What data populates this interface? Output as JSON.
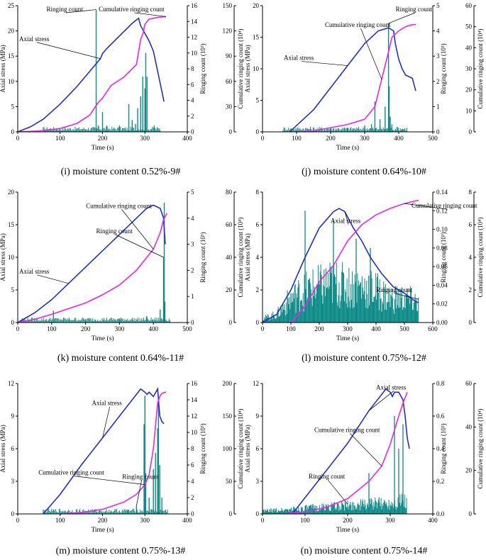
{
  "colors": {
    "axial": "#1f2ed8",
    "cumulative": "#ee22ee",
    "ringing": "#0b8a86",
    "axis": "#000000"
  },
  "chart_data": [
    {
      "id": "i",
      "type": "line",
      "caption": "(i) moisture content 0.52%-9#",
      "xlabel": "Time (s)",
      "ylabel_left": "Axial stress (MPa)",
      "ylabel_r1": "Ringing count (10³)",
      "ylabel_r2": "Cumulative ringing count (10⁴)",
      "xlim": [
        0,
        400
      ],
      "xticks": [
        0,
        100,
        200,
        300,
        400
      ],
      "ylim_left": [
        0,
        25
      ],
      "yticks_left": [
        0,
        5,
        10,
        15,
        20,
        25
      ],
      "ylim_r1": [
        0,
        16
      ],
      "yticks_r1": [
        0,
        2,
        4,
        6,
        8,
        10,
        12,
        14,
        16
      ],
      "ylim_r2": [
        0,
        150
      ],
      "yticks_r2": [
        0,
        30,
        60,
        90,
        120,
        150
      ],
      "annotations": [
        {
          "text": "Ringing count",
          "series": "ringing"
        },
        {
          "text": "Cumulative ringing count",
          "series": "cumulative"
        },
        {
          "text": "Axial stress",
          "series": "axial"
        }
      ],
      "series": [
        {
          "name": "Axial stress",
          "axis": "left",
          "x": [
            0,
            30,
            60,
            100,
            140,
            180,
            195,
            200,
            210,
            240,
            270,
            285,
            290,
            300,
            310,
            320,
            330,
            340,
            345
          ],
          "y": [
            0,
            1,
            2.5,
            5.5,
            9,
            13,
            14.5,
            15.5,
            16.5,
            19,
            21.5,
            22.5,
            21,
            19.5,
            18,
            16,
            12,
            8,
            6
          ]
        },
        {
          "name": "Cumulative ringing count",
          "axis": "r2",
          "x": [
            0,
            50,
            100,
            140,
            170,
            190,
            200,
            220,
            250,
            280,
            290,
            295,
            300,
            310,
            330,
            350
          ],
          "y": [
            0,
            1,
            4,
            10,
            20,
            35,
            40,
            55,
            65,
            80,
            110,
            116,
            128,
            134,
            136,
            137
          ]
        },
        {
          "name": "Ringing count",
          "axis": "r1",
          "kind": "spikes",
          "x": [
            185,
            190,
            200,
            210,
            240,
            262,
            270,
            278,
            283,
            290,
            295,
            300,
            302,
            305,
            322
          ],
          "y": [
            15.5,
            0.8,
            2.5,
            0.8,
            0.8,
            3.5,
            1.5,
            1,
            3,
            4.5,
            7,
            5.5,
            10,
            7,
            0.8
          ]
        }
      ]
    },
    {
      "id": "j",
      "type": "line",
      "caption": "(j) moisture content 0.64%-10#",
      "xlabel": "Time (s)",
      "ylabel_left": "Axial stress (MPa)",
      "ylabel_r1": "Ringing count (10³)",
      "ylabel_r2": "Cumulative ringing count (10⁴)",
      "xlim": [
        0,
        500
      ],
      "xticks": [
        0,
        100,
        200,
        300,
        400,
        500
      ],
      "ylim_left": [
        0,
        20
      ],
      "yticks_left": [
        0,
        5,
        10,
        15,
        20
      ],
      "ylim_r1": [
        0,
        5
      ],
      "yticks_r1": [
        0,
        1,
        2,
        3,
        4,
        5
      ],
      "ylim_r2": [
        0,
        60
      ],
      "yticks_r2": [
        0,
        10,
        20,
        30,
        40,
        50,
        60
      ],
      "annotations": [
        {
          "text": "Cumulative ringing count",
          "series": "cumulative"
        },
        {
          "text": "Axial stress",
          "series": "axial"
        },
        {
          "text": "Ringing count",
          "series": "ringing"
        }
      ],
      "series": [
        {
          "name": "Axial stress",
          "axis": "left",
          "x": [
            80,
            100,
            150,
            200,
            250,
            300,
            340,
            370,
            385,
            390,
            400,
            410,
            420,
            440,
            450
          ],
          "y": [
            0,
            1,
            3.5,
            7,
            10.5,
            14,
            16,
            16.5,
            16,
            14,
            11.5,
            10,
            9,
            8.5,
            6.5
          ]
        },
        {
          "name": "Cumulative ringing count",
          "axis": "r2",
          "x": [
            100,
            150,
            200,
            250,
            300,
            330,
            350,
            370,
            380,
            400,
            420,
            440,
            450
          ],
          "y": [
            0,
            0.5,
            2,
            3.5,
            6,
            12,
            25,
            38,
            45,
            48,
            50,
            51,
            51
          ]
        },
        {
          "name": "Ringing count",
          "axis": "r1",
          "kind": "spikes",
          "x": [
            200,
            250,
            300,
            320,
            330,
            345,
            360,
            370,
            372,
            375,
            380,
            395,
            410
          ],
          "y": [
            0.15,
            0.15,
            0.25,
            0.3,
            1.2,
            0.5,
            1,
            4.3,
            1.8,
            0.6,
            0.3,
            0.2,
            0.1
          ]
        }
      ]
    },
    {
      "id": "k",
      "type": "line",
      "caption": "(k) moisture content 0.64%-11#",
      "xlabel": "Time (s)",
      "ylabel_left": "Axial stress (MPa)",
      "ylabel_r1": "Ringing count (10³)",
      "ylabel_r2": "Cumulative ringing count (10⁴)",
      "xlim": [
        0,
        500
      ],
      "xticks": [
        0,
        100,
        200,
        300,
        400,
        500
      ],
      "ylim_left": [
        0,
        20
      ],
      "yticks_left": [
        0,
        5,
        10,
        15,
        20
      ],
      "ylim_r1": [
        0,
        5
      ],
      "yticks_r1": [
        0,
        1,
        2,
        3,
        4,
        5
      ],
      "ylim_r2": [
        0,
        80
      ],
      "yticks_r2": [
        0,
        20,
        40,
        60,
        80
      ],
      "annotations": [
        {
          "text": "Axial stress",
          "series": "axial"
        },
        {
          "text": "Cumulative ringing count",
          "series": "cumulative"
        },
        {
          "text": "Ringing count",
          "series": "ringing"
        }
      ],
      "series": [
        {
          "name": "Axial stress",
          "axis": "left",
          "x": [
            0,
            50,
            100,
            150,
            200,
            250,
            300,
            350,
            380,
            400,
            420,
            430,
            435
          ],
          "y": [
            0,
            1.5,
            3.5,
            6,
            8.5,
            11,
            13.5,
            16,
            17.5,
            18,
            17.5,
            16,
            12
          ]
        },
        {
          "name": "Cumulative ringing count",
          "axis": "r2",
          "x": [
            0,
            50,
            100,
            150,
            200,
            250,
            300,
            350,
            400,
            420,
            430,
            440
          ],
          "y": [
            0,
            2,
            5,
            8.5,
            12,
            17,
            23,
            32,
            45,
            55,
            63,
            67
          ]
        },
        {
          "name": "Ringing count",
          "axis": "r1",
          "kind": "spikes",
          "x": [
            105,
            200,
            300,
            380,
            420,
            430,
            432,
            434
          ],
          "y": [
            0.45,
            0.1,
            0.15,
            0.25,
            0.5,
            2.5,
            4.6,
            0.8
          ]
        }
      ]
    },
    {
      "id": "l",
      "type": "line",
      "caption": "(l) moisture content 0.75%-12#",
      "xlabel": "Time (s)",
      "ylabel_left": "Axial stress (MPa)",
      "ylabel_r1": "Ringing count (10³)",
      "ylabel_r2": "Cumulative ringing count (10⁴)",
      "xlim": [
        0,
        600
      ],
      "xticks": [
        0,
        100,
        200,
        300,
        400,
        500,
        600
      ],
      "ylim_left": [
        0,
        8
      ],
      "yticks_left": [
        0,
        2,
        4,
        6,
        8
      ],
      "ylim_r1": [
        0,
        0.14
      ],
      "yticks_r1": [
        0.0,
        0.02,
        0.04,
        0.06,
        0.08,
        0.1,
        0.12,
        0.14
      ],
      "ylim_r2": [
        0,
        8
      ],
      "yticks_r2": [
        0,
        2,
        4,
        6,
        8
      ],
      "annotations": [
        {
          "text": "Ringing count",
          "series": "ringing"
        },
        {
          "text": "Axial stress",
          "series": "axial"
        },
        {
          "text": "Cumulative ringing count",
          "series": "cumulative"
        }
      ],
      "series": [
        {
          "name": "Axial stress",
          "axis": "left",
          "x": [
            0,
            50,
            100,
            150,
            200,
            250,
            270,
            290,
            320,
            350,
            380,
            420,
            460,
            500,
            530,
            550
          ],
          "y": [
            0,
            0.5,
            2,
            4,
            5.8,
            6.8,
            7,
            6.8,
            5.8,
            5,
            4,
            3,
            2.2,
            1.8,
            1.4,
            1.2
          ]
        },
        {
          "name": "Cumulative ringing count",
          "axis": "r2",
          "x": [
            100,
            150,
            200,
            250,
            300,
            350,
            400,
            450,
            500,
            550
          ],
          "y": [
            0,
            1,
            2.5,
            3.5,
            5,
            6,
            6.6,
            7,
            7.3,
            7.5
          ]
        },
        {
          "name": "Ringing count",
          "axis": "r1",
          "kind": "band",
          "x": [
            0,
            50,
            100,
            150,
            200,
            250,
            300,
            350,
            400,
            450,
            500,
            550
          ],
          "y": [
            0.005,
            0.01,
            0.03,
            0.04,
            0.045,
            0.05,
            0.045,
            0.045,
            0.04,
            0.03,
            0.03,
            0.025
          ],
          "peaks_x": [
            150,
            250,
            330,
            380
          ],
          "peaks_y": [
            0.12,
            0.11,
            0.09,
            0.08
          ]
        }
      ]
    },
    {
      "id": "m",
      "type": "line",
      "caption": "(m) moisture content 0.75%-13#",
      "xlabel": "Time (s)",
      "ylabel_left": "Axial stress (MPa)",
      "ylabel_r1": "Ringing count (10³)",
      "ylabel_r2": "Cumulative ringing count (10⁴)",
      "xlim": [
        0,
        400
      ],
      "xticks": [
        0,
        100,
        200,
        300,
        400
      ],
      "ylim_left": [
        0,
        12
      ],
      "yticks_left": [
        0,
        3,
        6,
        9,
        12
      ],
      "ylim_r1": [
        0,
        16
      ],
      "yticks_r1": [
        0,
        2,
        4,
        6,
        8,
        10,
        12,
        14,
        16
      ],
      "ylim_r2": [
        0,
        200
      ],
      "yticks_r2": [
        0,
        50,
        100,
        150,
        200
      ],
      "annotations": [
        {
          "text": "Axial stress",
          "series": "axial"
        },
        {
          "text": "Ringing count",
          "series": "ringing"
        },
        {
          "text": "Cumulative ringing count",
          "series": "cumulative"
        }
      ],
      "series": [
        {
          "name": "Axial stress",
          "axis": "left",
          "x": [
            60,
            100,
            150,
            200,
            250,
            290,
            300,
            305,
            310,
            320,
            330,
            335,
            340,
            345
          ],
          "y": [
            0,
            1.8,
            4.5,
            7,
            9.5,
            11.5,
            11.2,
            11,
            11.2,
            10.8,
            11.5,
            9,
            8.5,
            8.3
          ]
        },
        {
          "name": "Cumulative ringing count",
          "axis": "r2",
          "x": [
            100,
            150,
            200,
            250,
            280,
            300,
            310,
            320,
            330,
            335,
            340,
            350
          ],
          "y": [
            0,
            2,
            7,
            18,
            30,
            45,
            60,
            100,
            170,
            180,
            185,
            187
          ]
        },
        {
          "name": "Ringing count",
          "axis": "r1",
          "kind": "spikes",
          "x": [
            260,
            280,
            298,
            300,
            302,
            310,
            320,
            325,
            330,
            332,
            335,
            340
          ],
          "y": [
            0.5,
            1,
            11,
            14.5,
            5,
            2,
            5.5,
            7.5,
            10.5,
            14,
            6,
            2
          ]
        }
      ]
    },
    {
      "id": "n",
      "type": "line",
      "caption": "(n) moisture content 0.75%-14#",
      "xlabel": "Time (s)",
      "ylabel_left": "Axial stress (MPa)",
      "ylabel_r1": "Ringing count (10³)",
      "ylabel_r2": "Cumulative ringing count (10⁴)",
      "xlim": [
        0,
        400
      ],
      "xticks": [
        0,
        100,
        200,
        300,
        400
      ],
      "ylim_left": [
        0,
        12
      ],
      "yticks_left": [
        0,
        3,
        6,
        9,
        12
      ],
      "ylim_r1": [
        0,
        0.8
      ],
      "yticks_r1": [
        0.0,
        0.2,
        0.4,
        0.6,
        0.8
      ],
      "ylim_r2": [
        0,
        60
      ],
      "yticks_r2": [
        0,
        20,
        40,
        60
      ],
      "annotations": [
        {
          "text": "Axial stress",
          "series": "axial"
        },
        {
          "text": "Cumulative ringing count",
          "series": "cumulative"
        },
        {
          "text": "Ringing count",
          "series": "ringing"
        }
      ],
      "series": [
        {
          "name": "Axial stress",
          "axis": "left",
          "x": [
            70,
            100,
            150,
            200,
            250,
            290,
            300,
            305,
            310,
            320,
            330,
            335,
            340,
            345
          ],
          "y": [
            0,
            1.5,
            4,
            6.5,
            9.5,
            11.5,
            11.2,
            10.8,
            11.2,
            11.2,
            10.5,
            9,
            7,
            6
          ]
        },
        {
          "name": "Cumulative ringing count",
          "axis": "r2",
          "x": [
            50,
            100,
            150,
            200,
            250,
            280,
            300,
            320,
            330,
            340
          ],
          "y": [
            0,
            1,
            3,
            7,
            15,
            22,
            32,
            45,
            51,
            56
          ]
        },
        {
          "name": "Ringing count",
          "axis": "r1",
          "kind": "band",
          "x": [
            0,
            50,
            100,
            150,
            200,
            250,
            300,
            330,
            340
          ],
          "y": [
            0.02,
            0.03,
            0.04,
            0.05,
            0.06,
            0.07,
            0.08,
            0.1,
            0.08
          ],
          "peaks_x": [
            250,
            310,
            320,
            330
          ],
          "peaks_y": [
            0.25,
            0.6,
            0.4,
            0.55
          ]
        }
      ]
    }
  ]
}
